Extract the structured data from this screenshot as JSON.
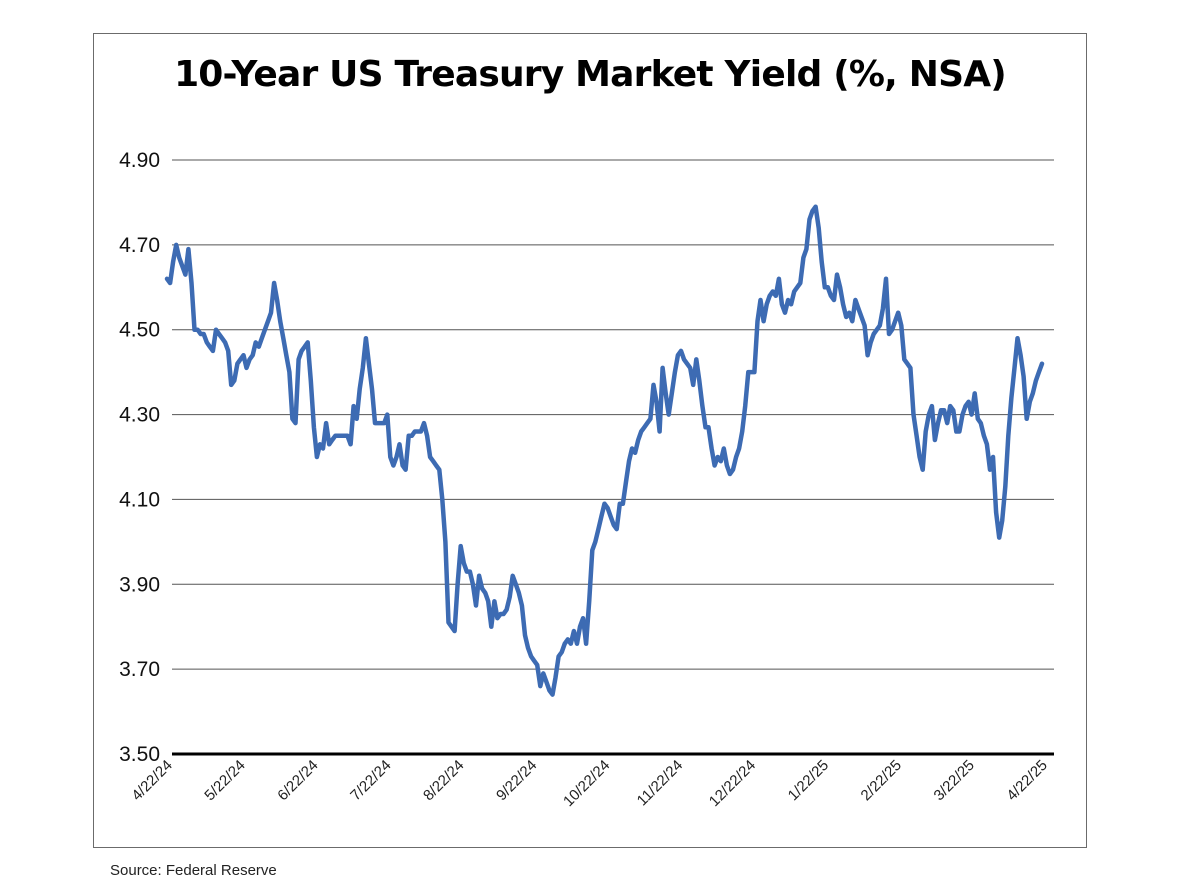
{
  "chart_data": {
    "type": "line",
    "title": "10-Year US Treasury Market Yield (%, NSA)",
    "xlabel": "",
    "ylabel": "",
    "ylim": [
      3.5,
      4.9
    ],
    "yticks": [
      3.5,
      3.7,
      3.9,
      4.1,
      4.3,
      4.5,
      4.7,
      4.9
    ],
    "ytick_labels": [
      "3.50",
      "3.70",
      "3.90",
      "4.10",
      "4.30",
      "4.50",
      "4.70",
      "4.90"
    ],
    "xtick_labels": [
      "4/22/24",
      "5/22/24",
      "6/22/24",
      "7/22/24",
      "8/22/24",
      "9/22/24",
      "10/22/24",
      "11/22/24",
      "12/22/24",
      "1/22/25",
      "2/22/25",
      "3/22/25",
      "4/22/25"
    ],
    "grid": true,
    "line_color": "#3d6bb3",
    "series": [
      {
        "name": "10-Year US Treasury Yield",
        "values": [
          4.62,
          4.61,
          4.66,
          4.7,
          4.67,
          4.65,
          4.63,
          4.69,
          4.61,
          4.5,
          4.5,
          4.49,
          4.49,
          4.47,
          4.46,
          4.45,
          4.5,
          4.49,
          4.48,
          4.47,
          4.45,
          4.37,
          4.38,
          4.42,
          4.43,
          4.44,
          4.41,
          4.43,
          4.44,
          4.47,
          4.46,
          4.48,
          4.5,
          4.52,
          4.54,
          4.61,
          4.57,
          4.52,
          4.48,
          4.44,
          4.4,
          4.29,
          4.28,
          4.43,
          4.45,
          4.46,
          4.47,
          4.38,
          4.27,
          4.2,
          4.23,
          4.22,
          4.28,
          4.23,
          4.24,
          4.25,
          4.25,
          4.25,
          4.25,
          4.25,
          4.23,
          4.32,
          4.29,
          4.36,
          4.41,
          4.48,
          4.42,
          4.36,
          4.28,
          4.28,
          4.28,
          4.28,
          4.3,
          4.2,
          4.18,
          4.2,
          4.23,
          4.18,
          4.17,
          4.25,
          4.25,
          4.26,
          4.26,
          4.26,
          4.28,
          4.25,
          4.2,
          4.19,
          4.18,
          4.17,
          4.1,
          4.0,
          3.81,
          3.8,
          3.79,
          3.9,
          3.99,
          3.95,
          3.93,
          3.93,
          3.9,
          3.85,
          3.92,
          3.89,
          3.88,
          3.86,
          3.8,
          3.86,
          3.82,
          3.83,
          3.83,
          3.84,
          3.87,
          3.92,
          3.9,
          3.88,
          3.85,
          3.78,
          3.75,
          3.73,
          3.72,
          3.71,
          3.66,
          3.69,
          3.67,
          3.65,
          3.64,
          3.68,
          3.73,
          3.74,
          3.76,
          3.77,
          3.76,
          3.79,
          3.76,
          3.8,
          3.82,
          3.76,
          3.86,
          3.98,
          4.0,
          4.03,
          4.06,
          4.09,
          4.08,
          4.06,
          4.04,
          4.03,
          4.09,
          4.09,
          4.14,
          4.19,
          4.22,
          4.21,
          4.24,
          4.26,
          4.27,
          4.28,
          4.29,
          4.37,
          4.33,
          4.26,
          4.41,
          4.35,
          4.3,
          4.35,
          4.4,
          4.44,
          4.45,
          4.43,
          4.42,
          4.41,
          4.37,
          4.43,
          4.38,
          4.32,
          4.27,
          4.27,
          4.22,
          4.18,
          4.2,
          4.19,
          4.22,
          4.18,
          4.16,
          4.17,
          4.2,
          4.22,
          4.26,
          4.32,
          4.4,
          4.4,
          4.4,
          4.52,
          4.57,
          4.52,
          4.56,
          4.58,
          4.59,
          4.58,
          4.62,
          4.56,
          4.54,
          4.57,
          4.56,
          4.59,
          4.6,
          4.61,
          4.67,
          4.69,
          4.76,
          4.78,
          4.79,
          4.74,
          4.66,
          4.6,
          4.6,
          4.58,
          4.57,
          4.63,
          4.6,
          4.56,
          4.53,
          4.54,
          4.52,
          4.57,
          4.55,
          4.53,
          4.51,
          4.44,
          4.47,
          4.49,
          4.5,
          4.51,
          4.55,
          4.62,
          4.49,
          4.5,
          4.52,
          4.54,
          4.51,
          4.43,
          4.42,
          4.41,
          4.3,
          4.25,
          4.2,
          4.17,
          4.26,
          4.3,
          4.32,
          4.24,
          4.28,
          4.31,
          4.31,
          4.28,
          4.32,
          4.31,
          4.26,
          4.26,
          4.3,
          4.32,
          4.33,
          4.3,
          4.35,
          4.29,
          4.28,
          4.25,
          4.23,
          4.17,
          4.2,
          4.07,
          4.01,
          4.05,
          4.13,
          4.25,
          4.34,
          4.41,
          4.48,
          4.44,
          4.39,
          4.29,
          4.33,
          4.35,
          4.38,
          4.4,
          4.42
        ]
      }
    ]
  },
  "source": "Source: Federal Reserve"
}
